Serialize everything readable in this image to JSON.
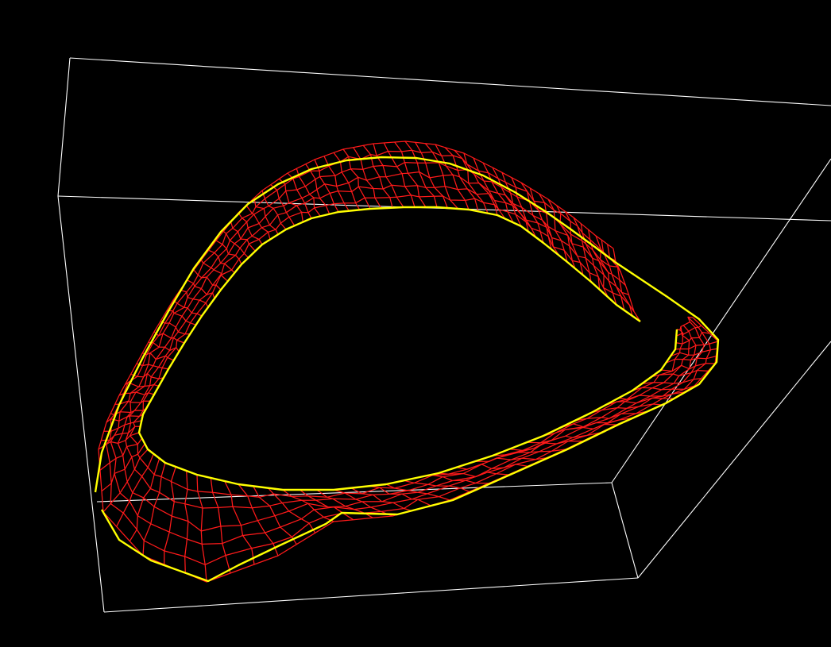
{
  "scene": {
    "background_color": "#000000",
    "bounding_box_color": "#ffffff",
    "mesh_color": "#ff1a1a",
    "contour_color": "#ffff00",
    "objects": [
      "bounding-box",
      "wireframe-surface-mesh",
      "contour-curves"
    ]
  }
}
